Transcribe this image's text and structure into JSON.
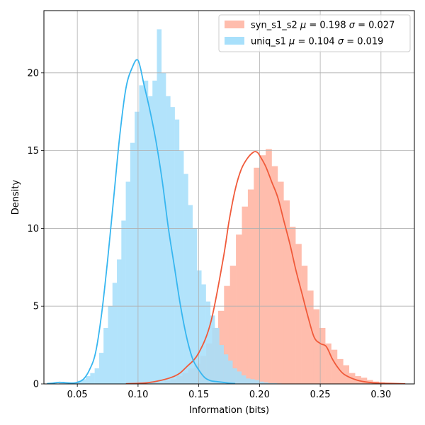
{
  "chart_data": {
    "type": "histogram",
    "xlabel": "Information (bits)",
    "ylabel": "Density",
    "xlim": [
      0.0225,
      0.3275
    ],
    "ylim": [
      0,
      24
    ],
    "xticks": [
      0.05,
      0.1,
      0.15,
      0.2,
      0.25,
      0.3
    ],
    "xtick_labels": [
      "0.05",
      "0.10",
      "0.15",
      "0.20",
      "0.25",
      "0.30"
    ],
    "yticks": [
      0,
      5,
      10,
      15,
      20
    ],
    "ytick_labels": [
      "0",
      "5",
      "10",
      "15",
      "20"
    ],
    "grid": true,
    "legend_position": "upper right",
    "series": [
      {
        "name": "syn_s1_s2",
        "mu": "0.198",
        "sigma": "0.027",
        "bar_color": "#ffbdad",
        "line_color": "#f05a3a",
        "bin_start": 0.0875,
        "bin_width": 0.0049,
        "bars": [
          0.02,
          0,
          0.02,
          0.05,
          0.05,
          0.1,
          0.1,
          0.2,
          0.3,
          0.5,
          0.7,
          1.0,
          1.3,
          1.8,
          2.6,
          3.6,
          4.7,
          6.3,
          7.6,
          9.6,
          11.4,
          12.5,
          13.9,
          14.7,
          15.1,
          14.0,
          13.0,
          11.8,
          10.1,
          9.0,
          7.6,
          6.0,
          4.8,
          3.6,
          2.6,
          2.2,
          1.6,
          1.2,
          0.7,
          0.5,
          0.4,
          0.25,
          0.15,
          0.1,
          0.05,
          0.05,
          0.03,
          0.02
        ],
        "kde_x": [
          0.09,
          0.11,
          0.13,
          0.14,
          0.15,
          0.16,
          0.17,
          0.175,
          0.18,
          0.185,
          0.19,
          0.195,
          0.198,
          0.2,
          0.205,
          0.21,
          0.215,
          0.22,
          0.225,
          0.23,
          0.235,
          0.24,
          0.245,
          0.25,
          0.255,
          0.26,
          0.265,
          0.27,
          0.28,
          0.29,
          0.3,
          0.32
        ],
        "kde_y": [
          0.01,
          0.1,
          0.5,
          1.1,
          2.0,
          4.0,
          8.0,
          10.5,
          12.5,
          13.8,
          14.5,
          14.9,
          14.9,
          14.7,
          14.0,
          13.0,
          12.0,
          10.5,
          9.0,
          7.3,
          5.8,
          4.3,
          3.0,
          2.6,
          2.4,
          1.6,
          1.0,
          0.6,
          0.25,
          0.1,
          0.05,
          0.01
        ]
      },
      {
        "name": "uniq_s1",
        "mu": "0.104",
        "sigma": "0.019",
        "bar_color": "#a8e0fb",
        "line_color": "#37b6f0",
        "bin_start": 0.035,
        "bin_width": 0.00366,
        "bars": [
          0.05,
          0.05,
          0.1,
          0.1,
          0.2,
          0.3,
          0.5,
          0.7,
          1.0,
          2.0,
          3.6,
          5.0,
          6.5,
          8.0,
          10.5,
          13.0,
          15.5,
          17.5,
          19.2,
          19.5,
          18.5,
          19.5,
          22.8,
          20.0,
          18.5,
          17.8,
          17.0,
          15.0,
          13.5,
          11.5,
          10.0,
          7.3,
          6.4,
          5.3,
          4.4,
          3.6,
          2.5,
          1.9,
          1.5,
          1.0,
          0.8,
          0.55,
          0.35,
          0.3,
          0.25,
          0.15,
          0.1,
          0.05,
          0.05,
          0.03,
          0.02
        ],
        "kde_x": [
          0.025,
          0.03,
          0.035,
          0.04,
          0.045,
          0.05,
          0.055,
          0.06,
          0.065,
          0.07,
          0.075,
          0.08,
          0.085,
          0.09,
          0.095,
          0.1,
          0.105,
          0.11,
          0.115,
          0.12,
          0.125,
          0.13,
          0.135,
          0.14,
          0.145,
          0.15,
          0.155,
          0.16,
          0.165,
          0.17,
          0.175,
          0.18
        ],
        "kde_y": [
          0.02,
          0.05,
          0.1,
          0.08,
          0.05,
          0.1,
          0.3,
          0.9,
          2.0,
          4.5,
          8.0,
          12.0,
          16.0,
          19.0,
          20.3,
          20.8,
          19.2,
          17.5,
          15.5,
          13.0,
          10.0,
          7.5,
          5.0,
          3.0,
          1.6,
          0.9,
          0.4,
          0.2,
          0.15,
          0.1,
          0.05,
          0.02
        ]
      }
    ]
  }
}
